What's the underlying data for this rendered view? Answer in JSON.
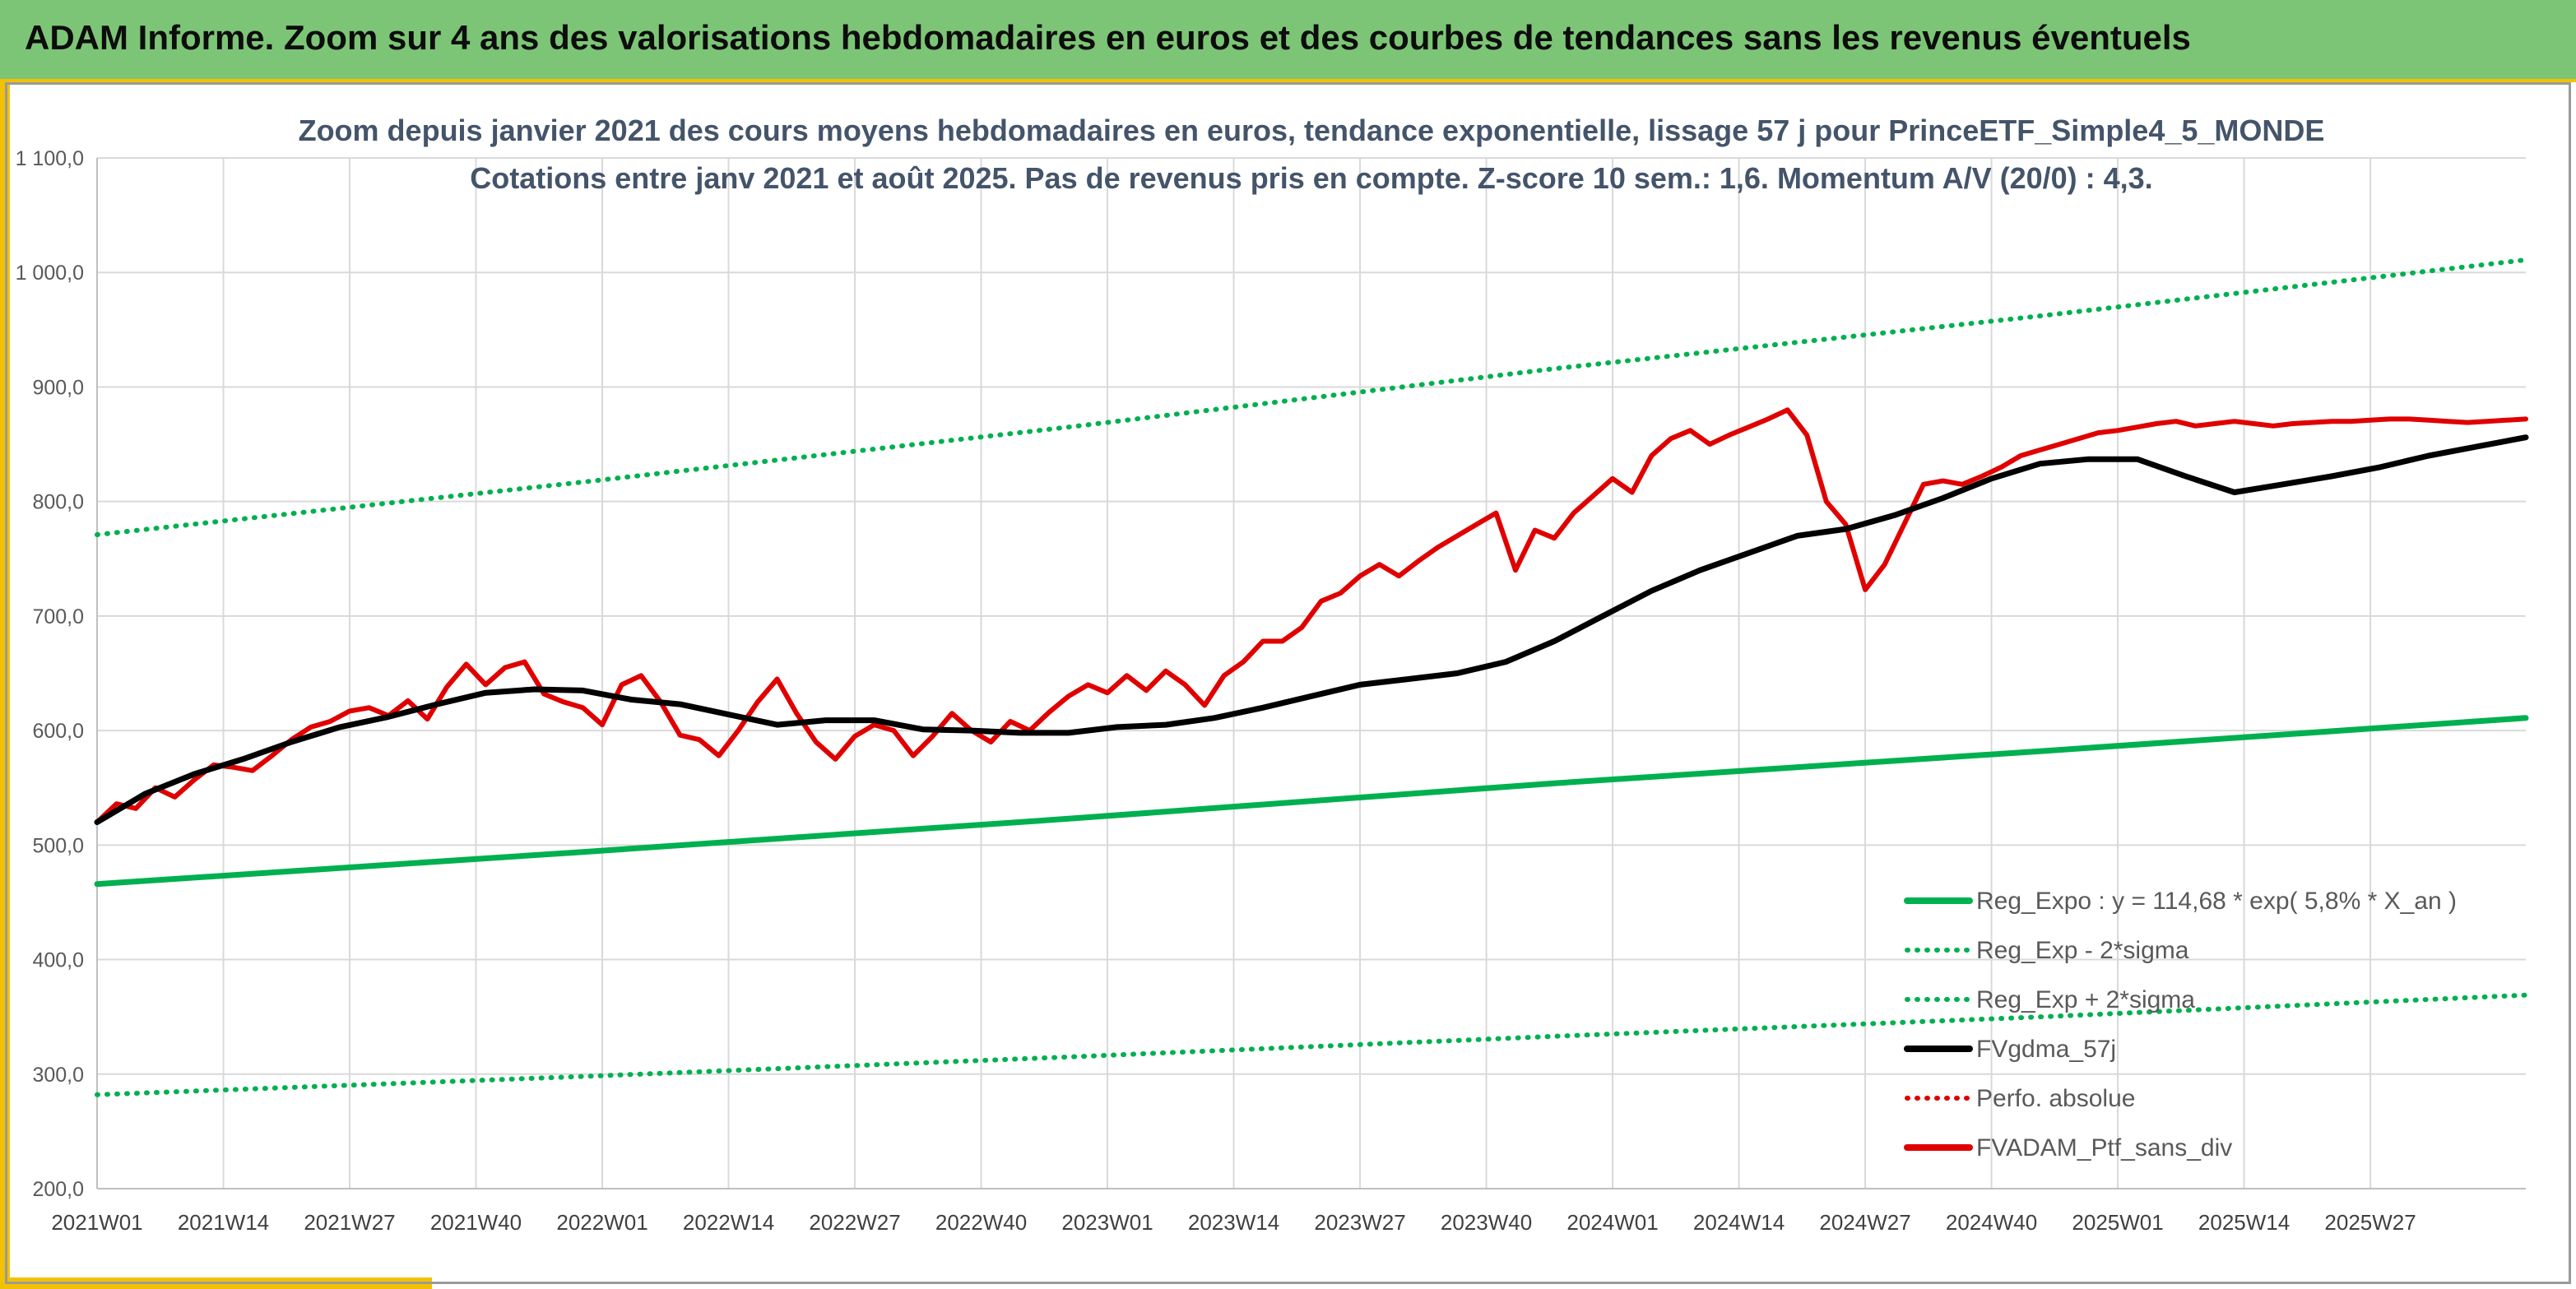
{
  "banner": {
    "title": "ADAM Informe. Zoom sur 4 ans des valorisations hebdomadaires en euros et des courbes de tendances sans les revenus éventuels"
  },
  "chart_data": {
    "type": "line",
    "title": "Zoom depuis janvier 2021 des cours moyens hebdomadaires en euros, tendance exponentielle, lissage 57 j pour PrinceETF_Simple4_5_MONDE",
    "subtitle": "Cotations entre janv 2021 et août 2025. Pas de revenus pris en compte. Z-score 10 sem.: 1,6. Momentum A/V (20/0) : 4,3.",
    "xlabel": "",
    "ylabel": "",
    "ylim": [
      200,
      1100
    ],
    "y_ticks": [
      "200,0",
      "300,0",
      "400,0",
      "500,0",
      "600,0",
      "700,0",
      "800,0",
      "900,0",
      "1 000,0",
      "1 100,0"
    ],
    "x_ticks": [
      "2021W01",
      "2021W14",
      "2021W27",
      "2021W40",
      "2022W01",
      "2022W14",
      "2022W27",
      "2022W40",
      "2023W01",
      "2023W14",
      "2023W27",
      "2023W40",
      "2024W01",
      "2024W14",
      "2024W27",
      "2024W40",
      "2025W01",
      "2025W14",
      "2025W27"
    ],
    "x_range_weeks": [
      0,
      250
    ],
    "grid": true,
    "legend_position": "bottom-right",
    "series": [
      {
        "name": "Reg_Expo : y = 114,68 * exp( 5,8% *  X_an )",
        "style": "solid",
        "color": "#00b050",
        "x": [
          0,
          50,
          100,
          150,
          200,
          250
        ],
        "values": [
          466,
          494,
          523,
          554,
          582,
          611
        ]
      },
      {
        "name": "Reg_Exp - 2*sigma",
        "style": "dotted",
        "color": "#00b050",
        "x": [
          0,
          50,
          100,
          150,
          200,
          250
        ],
        "values": [
          282,
          298,
          315,
          333,
          350,
          369
        ]
      },
      {
        "name": "Reg_Exp + 2*sigma",
        "style": "dotted",
        "color": "#00b050",
        "x": [
          0,
          50,
          100,
          150,
          200,
          250
        ],
        "values": [
          771,
          817,
          865,
          916,
          962,
          1011
        ]
      },
      {
        "name": "FVgdma_57j",
        "style": "solid",
        "color": "#000000",
        "x": [
          0,
          5,
          10,
          15,
          20,
          25,
          30,
          35,
          40,
          45,
          50,
          55,
          60,
          65,
          70,
          75,
          80,
          85,
          90,
          95,
          100,
          105,
          110,
          115,
          120,
          125,
          130,
          135,
          140,
          145,
          150,
          155,
          160,
          165,
          170,
          175,
          180,
          185,
          190,
          195,
          200,
          205,
          210,
          215,
          220,
          225,
          230,
          235,
          240,
          245,
          250
        ],
        "values": [
          520,
          545,
          562,
          575,
          590,
          603,
          612,
          623,
          633,
          636,
          635,
          627,
          623,
          614,
          605,
          609,
          609,
          601,
          600,
          598,
          598,
          603,
          605,
          611,
          620,
          630,
          640,
          645,
          650,
          660,
          678,
          700,
          722,
          740,
          755,
          770,
          776,
          788,
          803,
          820,
          833,
          837,
          837,
          822,
          808,
          815,
          822,
          830,
          840,
          848,
          856
        ]
      },
      {
        "name": "Perfo. absolue",
        "style": "dotted",
        "color": "#e00000",
        "x": [],
        "values": []
      },
      {
        "name": "FVADAM_Ptf_sans_div",
        "style": "solid",
        "color": "#e00000",
        "x": [
          0,
          2,
          4,
          6,
          8,
          10,
          12,
          14,
          16,
          18,
          20,
          22,
          24,
          26,
          28,
          30,
          32,
          34,
          36,
          38,
          40,
          42,
          44,
          46,
          48,
          50,
          52,
          54,
          56,
          58,
          60,
          62,
          64,
          66,
          68,
          70,
          72,
          74,
          76,
          78,
          80,
          82,
          84,
          86,
          88,
          90,
          92,
          94,
          96,
          98,
          100,
          102,
          104,
          106,
          108,
          110,
          112,
          114,
          116,
          118,
          120,
          122,
          124,
          126,
          128,
          130,
          132,
          134,
          136,
          138,
          140,
          142,
          144,
          146,
          148,
          150,
          152,
          154,
          156,
          158,
          160,
          162,
          164,
          166,
          168,
          170,
          172,
          174,
          176,
          178,
          180,
          182,
          184,
          186,
          188,
          190,
          192,
          194,
          196,
          198,
          200,
          202,
          204,
          206,
          208,
          210,
          212,
          214,
          216,
          218,
          220,
          222,
          224,
          226,
          228,
          230,
          232,
          234,
          236,
          238,
          240,
          242,
          244,
          246,
          248,
          250
        ],
        "values": [
          520,
          536,
          532,
          550,
          542,
          557,
          570,
          568,
          565,
          578,
          592,
          603,
          608,
          617,
          620,
          613,
          626,
          610,
          638,
          658,
          640,
          655,
          660,
          632,
          625,
          620,
          605,
          640,
          648,
          625,
          596,
          592,
          578,
          600,
          625,
          645,
          615,
          590,
          575,
          595,
          605,
          600,
          578,
          595,
          615,
          600,
          590,
          608,
          600,
          616,
          630,
          640,
          633,
          648,
          635,
          652,
          640,
          622,
          648,
          660,
          678,
          678,
          690,
          713,
          720,
          735,
          745,
          735,
          748,
          760,
          770,
          780,
          790,
          740,
          775,
          768,
          790,
          805,
          820,
          808,
          840,
          855,
          862,
          850,
          858,
          865,
          872,
          880,
          858,
          800,
          780,
          723,
          745,
          780,
          815,
          818,
          815,
          822,
          830,
          840,
          845,
          850,
          855,
          860,
          862,
          865,
          868,
          870,
          866,
          868,
          870,
          868,
          866,
          868,
          869,
          870,
          870,
          871,
          872,
          872,
          871,
          870,
          869,
          870,
          871,
          872
        ]
      }
    ]
  }
}
